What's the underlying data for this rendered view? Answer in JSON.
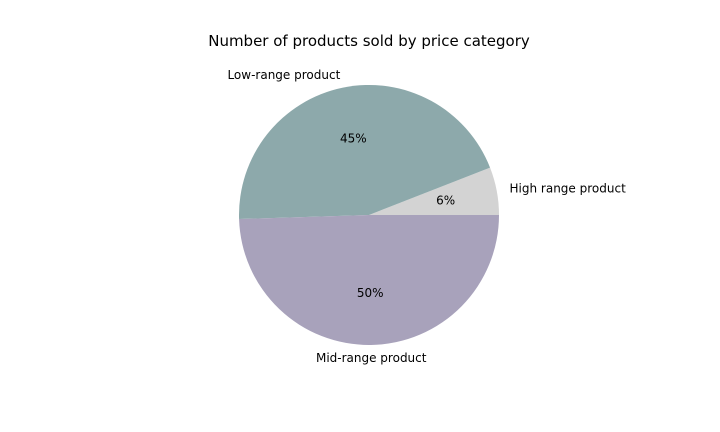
{
  "chart_data": {
    "type": "pie",
    "title": "Number of products sold by price category",
    "slices": [
      {
        "label": "High range product",
        "value": 6,
        "pct_text": "6%",
        "color": "#d3d3d3"
      },
      {
        "label": "Low-range product",
        "value": 45,
        "pct_text": "45%",
        "color": "#8da9ab"
      },
      {
        "label": "Mid-range product",
        "value": 50,
        "pct_text": "50%",
        "color": "#a8a2bb"
      }
    ],
    "start_angle_deg": 0,
    "direction": "counterclockwise",
    "legend": "none"
  }
}
